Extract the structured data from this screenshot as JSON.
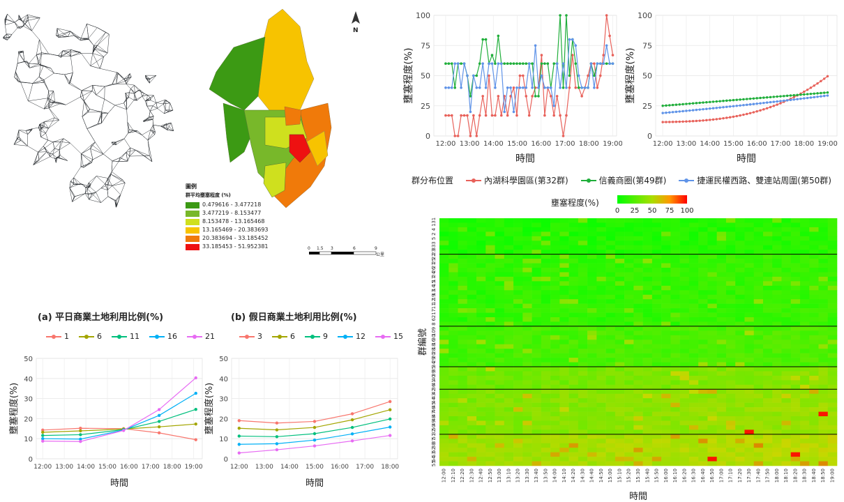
{
  "map": {
    "legend_title": "圖例",
    "legend_subtitle": "群平均壅塞程度 (%)",
    "classes": [
      {
        "label": "0.479616 - 3.477218",
        "color": "#3c9a14"
      },
      {
        "label": "3.477219 - 8.153477",
        "color": "#78b82a"
      },
      {
        "label": "8.153478 - 13.165468",
        "color": "#cfe01e"
      },
      {
        "label": "13.165469 - 20.383693",
        "color": "#f7c300"
      },
      {
        "label": "20.383694 - 33.185452",
        "color": "#f07a0a"
      },
      {
        "label": "33.185453 - 51.952381",
        "color": "#ee1111"
      }
    ],
    "north_label": "N",
    "scale_labels": [
      "0",
      "1.5",
      "3",
      "6",
      "9"
    ],
    "scale_unit": "公里"
  },
  "colors": {
    "c1": "#f8766d",
    "c2": "#a3a500",
    "c3": "#00bf7d",
    "c4": "#00b0f6",
    "c5": "#e76bf3",
    "red": "#e8615a",
    "green": "#1fae3a",
    "blue": "#5f93e8"
  },
  "chart_data": [
    {
      "id": "weekday",
      "type": "line",
      "title": "(a) 平日商業土地利用比例(%)",
      "xlabel": "時間",
      "ylabel": "壅塞程度(%)",
      "x": [
        0,
        1.75,
        3.75,
        5.4,
        7.1
      ],
      "xticks": [
        "12:00",
        "13:00",
        "14:00",
        "15:00",
        "16:00",
        "17:00",
        "18:00",
        "19:00"
      ],
      "ylim": [
        0,
        50
      ],
      "yticks": [
        0,
        10,
        20,
        30,
        40,
        50
      ],
      "series": [
        {
          "name": "1",
          "values": [
            14.3,
            15.2,
            15.0,
            12.9,
            9.5
          ]
        },
        {
          "name": "6",
          "values": [
            13.2,
            13.9,
            14.8,
            15.9,
            17.3
          ]
        },
        {
          "name": "11",
          "values": [
            11.6,
            12.0,
            14.5,
            18.6,
            24.6
          ]
        },
        {
          "name": "16",
          "values": [
            10.0,
            9.8,
            14.3,
            21.6,
            32.6
          ]
        },
        {
          "name": "21",
          "values": [
            8.8,
            8.6,
            14.1,
            24.5,
            40.3
          ]
        }
      ]
    },
    {
      "id": "weekend",
      "type": "line",
      "title": "(b) 假日商業土地利用比例(%)",
      "xlabel": "時間",
      "ylabel": "壅塞程度(%)",
      "x": [
        0,
        1.5,
        3.0,
        4.5,
        6.0
      ],
      "xticks": [
        "12:00",
        "13:00",
        "14:00",
        "15:00",
        "16:00",
        "17:00",
        "18:00"
      ],
      "ylim": [
        0,
        50
      ],
      "yticks": [
        0,
        10,
        20,
        30,
        40,
        50
      ],
      "series": [
        {
          "name": "3",
          "values": [
            19.0,
            17.8,
            18.6,
            22.4,
            28.5
          ]
        },
        {
          "name": "6",
          "values": [
            15.2,
            14.4,
            15.6,
            19.4,
            24.4
          ]
        },
        {
          "name": "9",
          "values": [
            11.3,
            11.0,
            12.5,
            15.6,
            19.8
          ]
        },
        {
          "name": "12",
          "values": [
            7.2,
            7.5,
            9.3,
            12.4,
            15.8
          ]
        },
        {
          "name": "15",
          "values": [
            2.9,
            4.5,
            6.4,
            8.9,
            11.6
          ]
        }
      ]
    },
    {
      "id": "clusters-observed",
      "type": "line",
      "xlabel": "時間",
      "ylabel": "壅塞程度(%)",
      "xticks": [
        "12:00",
        "13:00",
        "14:00",
        "15:00",
        "16:00",
        "17:00",
        "18:00",
        "19:00"
      ],
      "ylim": [
        0,
        100
      ],
      "yticks": [
        0,
        25,
        50,
        75,
        100
      ],
      "x_start": "12:00",
      "x_step_minutes": 10,
      "series": [
        {
          "name": "內湖科學園區(第32群)",
          "values": [
            17,
            17,
            17,
            0,
            0,
            17,
            17,
            17,
            0,
            17,
            0,
            17,
            33,
            17,
            50,
            17,
            17,
            33,
            17,
            33,
            17,
            33,
            40,
            17,
            50,
            50,
            33,
            17,
            33,
            40,
            40,
            67,
            17,
            40,
            33,
            17,
            33,
            17,
            0,
            17,
            40,
            67,
            40,
            40,
            33,
            40,
            50,
            60,
            60,
            40,
            50,
            67,
            100,
            83,
            67
          ]
        },
        {
          "name": "信義商圈(第49群)",
          "values": [
            60,
            60,
            60,
            40,
            60,
            60,
            60,
            50,
            33,
            50,
            50,
            60,
            80,
            80,
            60,
            67,
            60,
            83,
            60,
            60,
            60,
            60,
            60,
            60,
            60,
            60,
            60,
            60,
            60,
            33,
            33,
            60,
            60,
            60,
            40,
            60,
            60,
            100,
            40,
            100,
            50,
            80,
            60,
            40,
            40,
            40,
            40,
            60,
            50,
            60,
            60,
            60,
            60,
            60,
            60
          ]
        },
        {
          "name": "捷運民權西路、雙連站周圍(第50群)",
          "values": [
            40,
            40,
            40,
            60,
            60,
            40,
            60,
            50,
            20,
            50,
            40,
            40,
            60,
            40,
            60,
            60,
            40,
            60,
            60,
            20,
            40,
            40,
            20,
            40,
            40,
            40,
            40,
            60,
            40,
            75,
            40,
            50,
            40,
            40,
            40,
            25,
            60,
            40,
            60,
            40,
            80,
            80,
            75,
            50,
            40,
            40,
            40,
            60,
            40,
            60,
            60,
            60,
            75,
            60,
            60
          ]
        }
      ]
    },
    {
      "id": "clusters-fitted",
      "type": "line",
      "xlabel": "時間",
      "ylabel": "壅塞程度(%)",
      "xticks": [
        "12:00",
        "13:00",
        "14:00",
        "15:00",
        "16:00",
        "17:00",
        "18:00",
        "19:00"
      ],
      "ylim": [
        0,
        100
      ],
      "yticks": [
        0,
        25,
        50,
        75,
        100
      ],
      "x_start": "12:00",
      "x_end": "19:00",
      "series": [
        {
          "name": "內湖科學園區(第32群)",
          "start": 11.5,
          "end": 49.5,
          "shape": "convex"
        },
        {
          "name": "信義商圈(第49群)",
          "start": 25.0,
          "end": 36.0,
          "shape": "linear"
        },
        {
          "name": "捷運民權西路、雙連站周圍(第50群)",
          "start": 19.0,
          "end": 33.5,
          "shape": "slight"
        }
      ]
    },
    {
      "id": "heatmap",
      "type": "heatmap",
      "xlabel": "時間",
      "ylabel": "群編號",
      "colorbar_title": "壅塞程度(%)",
      "colorbar_ticks": [
        0,
        25,
        50,
        75,
        100
      ],
      "x_start": "12:00",
      "x_step_minutes": 10,
      "x_count": 43,
      "rows": 55,
      "row_tick_labels": [
        "31",
        "1",
        "4",
        "2",
        "5",
        "3",
        "33",
        "23",
        "22",
        "25",
        "27",
        "26",
        "24",
        "17",
        "15",
        "14",
        "13",
        "19",
        "12",
        "11",
        "7",
        "21",
        "6",
        "8",
        "9",
        "10",
        "30",
        "16",
        "18",
        "28",
        "20",
        "29",
        "34",
        "35",
        "39",
        "40",
        "41",
        "36",
        "42",
        "43",
        "44",
        "45",
        "46",
        "47",
        "48",
        "49",
        "50",
        "32",
        "51",
        "37",
        "38",
        "52",
        "53",
        "54",
        "55"
      ],
      "group_boundaries": [
        8,
        24,
        33,
        38,
        48
      ]
    }
  ],
  "legend": {
    "title": "群分布位置",
    "items": [
      {
        "label": "內湖科學園區(第32群)",
        "color": "#e8615a"
      },
      {
        "label": "信義商圈(第49群)",
        "color": "#1fae3a"
      },
      {
        "label": "捷運民權西路、雙連站周圍(第50群)",
        "color": "#5f93e8"
      }
    ]
  }
}
